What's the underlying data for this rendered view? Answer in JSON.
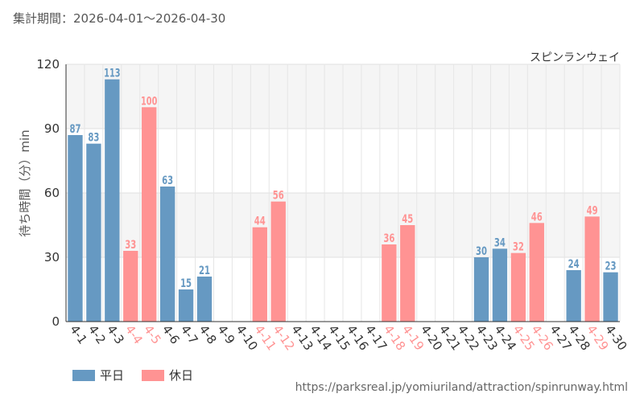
{
  "header": {
    "period_label": "集計期間：2026-04-01～2026-04-30"
  },
  "legend": {
    "weekday": {
      "label": "平日",
      "color": "#6699c2"
    },
    "holiday": {
      "label": "休日",
      "color": "#ff9393"
    }
  },
  "footer": {
    "source_url": "https://parksreal.jp/yomiuriland/attraction/spinrunway.html"
  },
  "chart_data": {
    "type": "bar",
    "title": "スピンランウェイ",
    "xlabel": "",
    "ylabel": "待ち時間（分）min",
    "ylim": [
      0,
      120
    ],
    "yticks": [
      0,
      30,
      60,
      90,
      120
    ],
    "grid": true,
    "legend_position": "bottom-left",
    "categories": [
      "4-1",
      "4-2",
      "4-3",
      "4-4",
      "4-5",
      "4-6",
      "4-7",
      "4-8",
      "4-9",
      "4-10",
      "4-11",
      "4-12",
      "4-13",
      "4-14",
      "4-15",
      "4-16",
      "4-17",
      "4-18",
      "4-19",
      "4-20",
      "4-21",
      "4-22",
      "4-23",
      "4-24",
      "4-25",
      "4-26",
      "4-27",
      "4-28",
      "4-29",
      "4-30"
    ],
    "day_type": [
      "weekday",
      "weekday",
      "weekday",
      "holiday",
      "holiday",
      "weekday",
      "weekday",
      "weekday",
      "weekday",
      "weekday",
      "holiday",
      "holiday",
      "weekday",
      "weekday",
      "weekday",
      "weekday",
      "weekday",
      "holiday",
      "holiday",
      "weekday",
      "weekday",
      "weekday",
      "weekday",
      "weekday",
      "holiday",
      "holiday",
      "weekday",
      "weekday",
      "holiday",
      "weekday"
    ],
    "values": [
      87,
      83,
      113,
      33,
      100,
      63,
      15,
      21,
      null,
      null,
      44,
      56,
      null,
      null,
      null,
      null,
      null,
      36,
      45,
      null,
      null,
      null,
      30,
      34,
      32,
      46,
      null,
      24,
      49,
      23
    ],
    "colors": {
      "weekday": "#6699c2",
      "holiday": "#ff9393"
    }
  }
}
